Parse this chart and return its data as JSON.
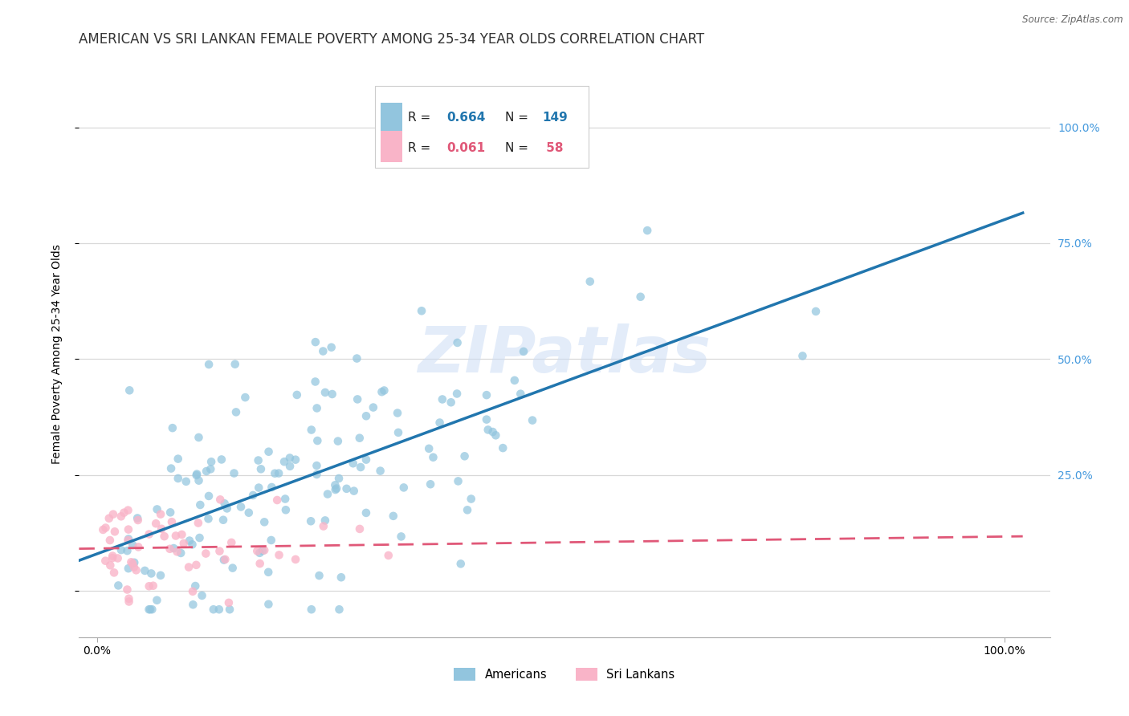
{
  "title": "AMERICAN VS SRI LANKAN FEMALE POVERTY AMONG 25-34 YEAR OLDS CORRELATION CHART",
  "source": "Source: ZipAtlas.com",
  "ylabel": "Female Poverty Among 25-34 Year Olds",
  "xlim": [
    -0.02,
    1.05
  ],
  "ylim": [
    -0.1,
    1.12
  ],
  "xtick_labels": [
    "0.0%",
    "100.0%"
  ],
  "ytick_vals": [
    0.0,
    0.25,
    0.5,
    0.75,
    1.0
  ],
  "ytick_labels_right": [
    "",
    "25.0%",
    "50.0%",
    "75.0%",
    "100.0%"
  ],
  "american_color": "#92c5de",
  "srilanka_color": "#f9b4c8",
  "american_line_color": "#2176ae",
  "srilanka_line_color": "#e05878",
  "right_tick_color": "#4499dd",
  "watermark": "ZIPatlas",
  "title_fontsize": 12,
  "axis_fontsize": 10,
  "american_n": 149,
  "srilanka_n": 58,
  "american_R": 0.664,
  "srilanka_R": 0.061
}
